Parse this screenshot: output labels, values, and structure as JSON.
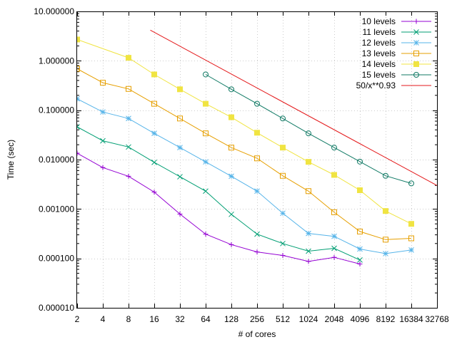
{
  "chart_data": {
    "type": "line",
    "title": "",
    "xlabel": "# of cores",
    "ylabel": "Time (sec)",
    "x_scale": "log2",
    "y_scale": "log10",
    "xlim": [
      2,
      32768
    ],
    "ylim": [
      1e-05,
      10
    ],
    "grid": true,
    "legend_position": "top-right",
    "x_ticks": [
      {
        "value": 2,
        "label": "2"
      },
      {
        "value": 4,
        "label": "4"
      },
      {
        "value": 8,
        "label": "8"
      },
      {
        "value": 16,
        "label": "16"
      },
      {
        "value": 32,
        "label": "32"
      },
      {
        "value": 64,
        "label": "64"
      },
      {
        "value": 128,
        "label": "128"
      },
      {
        "value": 256,
        "label": "256"
      },
      {
        "value": 512,
        "label": "512"
      },
      {
        "value": 1024,
        "label": "1024"
      },
      {
        "value": 2048,
        "label": "2048"
      },
      {
        "value": 4096,
        "label": "4096"
      },
      {
        "value": 8192,
        "label": "8192"
      },
      {
        "value": 16384,
        "label": "16384"
      },
      {
        "value": 32768,
        "label": "32768"
      }
    ],
    "y_ticks": [
      {
        "value": 10,
        "label": "10.000000"
      },
      {
        "value": 1,
        "label": "1.000000"
      },
      {
        "value": 0.1,
        "label": "0.100000"
      },
      {
        "value": 0.01,
        "label": "0.010000"
      },
      {
        "value": 0.001,
        "label": "0.001000"
      },
      {
        "value": 0.0001,
        "label": "0.000100"
      },
      {
        "value": 1e-05,
        "label": "0.000010"
      }
    ],
    "series": [
      {
        "name": "10 levels",
        "color": "#9400d3",
        "marker": "plus",
        "x": [
          2,
          4,
          8,
          16,
          32,
          64,
          128,
          256,
          512,
          1024,
          2048,
          4096
        ],
        "y": [
          0.0135,
          0.0069,
          0.0046,
          0.0022,
          0.00079,
          0.00031,
          0.00019,
          0.000135,
          0.000115,
          8.7e-05,
          0.000105,
          7.7e-05
        ]
      },
      {
        "name": "11 levels",
        "color": "#009e73",
        "marker": "cross",
        "x": [
          2,
          4,
          8,
          16,
          32,
          64,
          128,
          256,
          512,
          1024,
          2048,
          4096
        ],
        "y": [
          0.046,
          0.024,
          0.018,
          0.0088,
          0.0045,
          0.0023,
          0.00078,
          0.00031,
          0.0002,
          0.00014,
          0.00016,
          9.3e-05
        ]
      },
      {
        "name": "12 levels",
        "color": "#56b4e9",
        "marker": "asterisk",
        "x": [
          2,
          4,
          8,
          16,
          32,
          64,
          128,
          256,
          512,
          1024,
          2048,
          4096,
          8192,
          16384
        ],
        "y": [
          0.17,
          0.092,
          0.068,
          0.034,
          0.0175,
          0.009,
          0.0046,
          0.0023,
          0.00082,
          0.00032,
          0.00028,
          0.000155,
          0.000125,
          0.000148
        ]
      },
      {
        "name": "13 levels",
        "color": "#e69f00",
        "marker": "square",
        "x": [
          2,
          4,
          8,
          16,
          32,
          64,
          128,
          256,
          512,
          1024,
          2048,
          4096,
          8192,
          16384
        ],
        "y": [
          0.69,
          0.36,
          0.27,
          0.135,
          0.068,
          0.034,
          0.0175,
          0.0106,
          0.0047,
          0.0023,
          0.00086,
          0.00035,
          0.00024,
          0.000255
        ]
      },
      {
        "name": "14 levels",
        "color": "#f0e442",
        "marker": "filled-square",
        "x": [
          2,
          8,
          16,
          32,
          64,
          128,
          256,
          512,
          1024,
          2048,
          4096,
          8192,
          16384
        ],
        "y": [
          2.7,
          1.15,
          0.53,
          0.265,
          0.135,
          0.072,
          0.035,
          0.0175,
          0.009,
          0.0049,
          0.0024,
          0.00091,
          0.0005
        ]
      },
      {
        "name": "15 levels",
        "color": "#117a65",
        "marker": "circle",
        "x": [
          64,
          128,
          256,
          512,
          1024,
          2048,
          4096,
          8192,
          16384
        ],
        "y": [
          0.53,
          0.265,
          0.135,
          0.068,
          0.034,
          0.0175,
          0.0091,
          0.0047,
          0.0033
        ]
      },
      {
        "name": "50/x**0.93",
        "color": "#e41a1c",
        "marker": "none",
        "function": "50/x**0.93",
        "x": [
          14.4,
          32768
        ],
        "y": [
          4.17,
          0.003
        ]
      }
    ]
  }
}
